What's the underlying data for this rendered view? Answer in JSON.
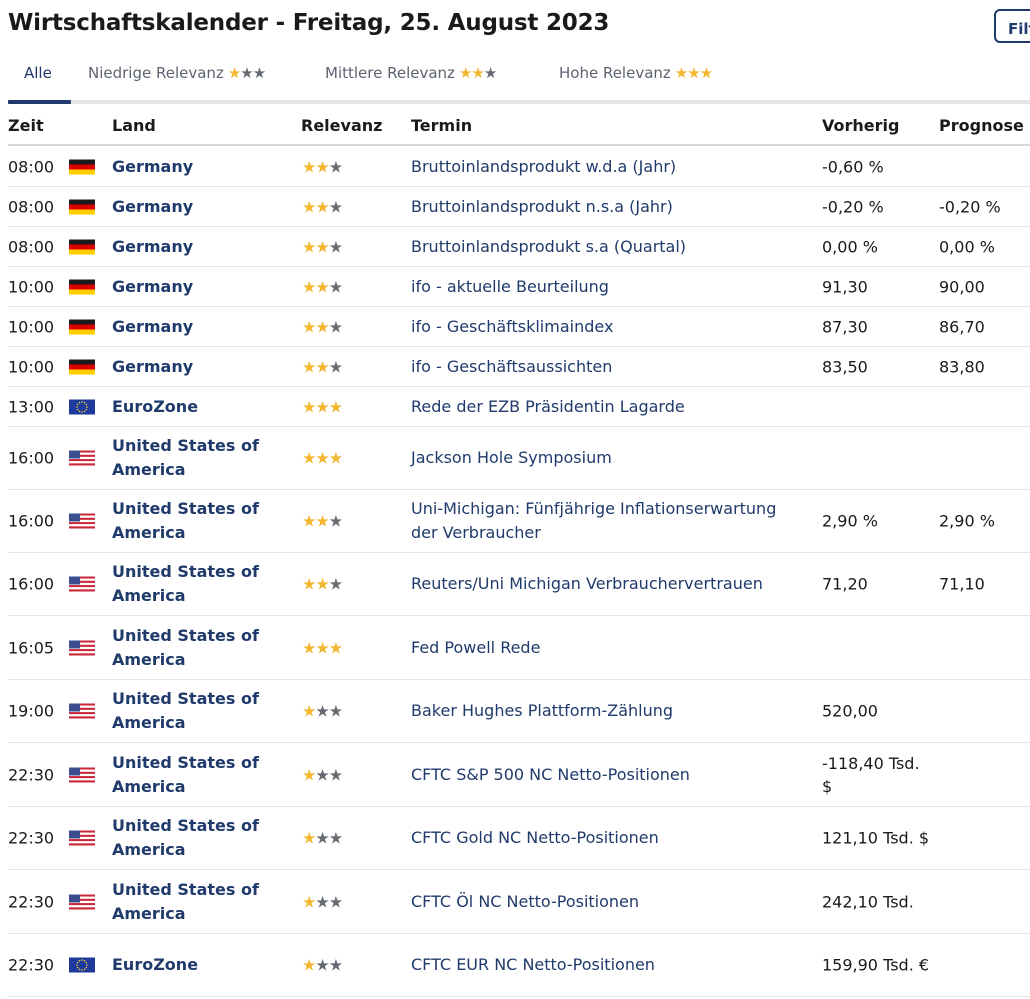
{
  "title": "Wirtschaftskalender - Freitag, 25. August 2023",
  "filter_label": "Filter",
  "tabs": [
    {
      "label": "Alle",
      "stars": 0,
      "active": true
    },
    {
      "label": "Niedrige Relevanz",
      "stars": 1,
      "active": false
    },
    {
      "label": "Mittlere Relevanz",
      "stars": 2,
      "active": false
    },
    {
      "label": "Hohe Relevanz",
      "stars": 3,
      "active": false
    }
  ],
  "colors": {
    "accent": "#1f3a6b",
    "star_on": "#f2b630",
    "star_off": "#666b73"
  },
  "columns": {
    "time": "Zeit",
    "country": "Land",
    "relevance": "Relevanz",
    "event": "Termin",
    "previous": "Vorherig",
    "forecast": "Prognose"
  },
  "rows": [
    {
      "time": "08:00",
      "flag": "de",
      "country": "Germany",
      "stars": 2,
      "event": "Bruttoinlandsprodukt w.d.a (Jahr)",
      "previous": "-0,60 %",
      "forecast": ""
    },
    {
      "time": "08:00",
      "flag": "de",
      "country": "Germany",
      "stars": 2,
      "event": "Bruttoinlandsprodukt n.s.a (Jahr)",
      "previous": "-0,20 %",
      "forecast": "-0,20 %"
    },
    {
      "time": "08:00",
      "flag": "de",
      "country": "Germany",
      "stars": 2,
      "event": "Bruttoinlandsprodukt s.a (Quartal)",
      "previous": "0,00 %",
      "forecast": "0,00 %"
    },
    {
      "time": "10:00",
      "flag": "de",
      "country": "Germany",
      "stars": 2,
      "event": "ifo - aktuelle Beurteilung",
      "previous": "91,30",
      "forecast": "90,00"
    },
    {
      "time": "10:00",
      "flag": "de",
      "country": "Germany",
      "stars": 2,
      "event": "ifo - Geschäftsklimaindex",
      "previous": "87,30",
      "forecast": "86,70"
    },
    {
      "time": "10:00",
      "flag": "de",
      "country": "Germany",
      "stars": 2,
      "event": "ifo - Geschäftsaussichten",
      "previous": "83,50",
      "forecast": "83,80"
    },
    {
      "time": "13:00",
      "flag": "eu",
      "country": "EuroZone",
      "stars": 3,
      "event": "Rede der EZB Präsidentin Lagarde",
      "previous": "",
      "forecast": ""
    },
    {
      "time": "16:00",
      "flag": "us",
      "country": "United States of America",
      "stars": 3,
      "event": "Jackson Hole Symposium",
      "previous": "",
      "forecast": ""
    },
    {
      "time": "16:00",
      "flag": "us",
      "country": "United States of America",
      "stars": 2,
      "event": "Uni-Michigan: Fünfjährige Inflationserwartung der Verbraucher",
      "previous": "2,90 %",
      "forecast": "2,90 %"
    },
    {
      "time": "16:00",
      "flag": "us",
      "country": "United States of America",
      "stars": 2,
      "event": "Reuters/Uni Michigan Verbrauchervertrauen",
      "previous": "71,20",
      "forecast": "71,10"
    },
    {
      "time": "16:05",
      "flag": "us",
      "country": "United States of America",
      "stars": 3,
      "event": "Fed Powell Rede",
      "previous": "",
      "forecast": ""
    },
    {
      "time": "19:00",
      "flag": "us",
      "country": "United States of America",
      "stars": 1,
      "event": "Baker Hughes Plattform-Zählung",
      "previous": "520,00",
      "forecast": ""
    },
    {
      "time": "22:30",
      "flag": "us",
      "country": "United States of America",
      "stars": 1,
      "event": "CFTC S&P 500 NC Netto-Positionen",
      "previous": "-118,40 Tsd. $",
      "forecast": ""
    },
    {
      "time": "22:30",
      "flag": "us",
      "country": "United States of America",
      "stars": 1,
      "event": "CFTC Gold NC Netto-Positionen",
      "previous": "121,10 Tsd. $",
      "forecast": ""
    },
    {
      "time": "22:30",
      "flag": "us",
      "country": "United States of America",
      "stars": 1,
      "event": "CFTC Öl NC Netto-Positionen",
      "previous": "242,10 Tsd.",
      "forecast": ""
    },
    {
      "time": "22:30",
      "flag": "eu",
      "country": "EuroZone",
      "stars": 1,
      "event": "CFTC EUR NC Netto-Positionen",
      "previous": "159,90 Tsd. €",
      "forecast": ""
    }
  ]
}
